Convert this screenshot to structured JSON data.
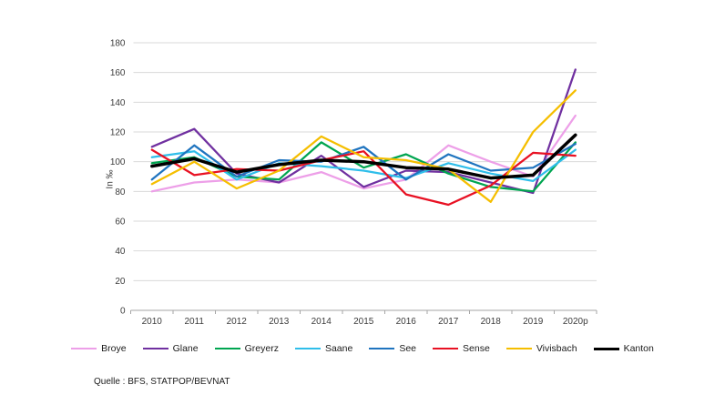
{
  "y_axis_title": "In ‰",
  "source": "Quelle : BFS, STATPOP/BEVNAT",
  "axis_color": "#a6a6a6",
  "grid_color": "#d9d9d9",
  "chart_data": {
    "type": "line",
    "title": "",
    "xlabel": "",
    "ylabel": "In ‰",
    "ylim": [
      0,
      180
    ],
    "y_tick_step": 20,
    "grid": true,
    "legend_position": "bottom",
    "categories": [
      "2010",
      "2011",
      "2012",
      "2013",
      "2014",
      "2015",
      "2016",
      "2017",
      "2018",
      "2019",
      "2020p"
    ],
    "series": [
      {
        "name": "Broye",
        "color": "#ED9FE8",
        "width": 2.25,
        "values": [
          80,
          86,
          88,
          86,
          93,
          82,
          88,
          111,
          100,
          90,
          131
        ]
      },
      {
        "name": "Glane",
        "color": "#7030A0",
        "width": 2.25,
        "values": [
          110,
          122,
          92,
          86,
          104,
          83,
          94,
          93,
          86,
          79,
          162
        ]
      },
      {
        "name": "Greyerz",
        "color": "#00A550",
        "width": 2.25,
        "values": [
          99,
          103,
          90,
          88,
          113,
          96,
          105,
          92,
          83,
          80,
          113
        ]
      },
      {
        "name": "Saane",
        "color": "#2FBEEA",
        "width": 2.25,
        "values": [
          103,
          107,
          88,
          99,
          97,
          94,
          89,
          99,
          92,
          87,
          108
        ]
      },
      {
        "name": "See",
        "color": "#1F74BF",
        "width": 2.25,
        "values": [
          88,
          111,
          90,
          101,
          100,
          110,
          88,
          105,
          94,
          96,
          112
        ]
      },
      {
        "name": "Sense",
        "color": "#E81123",
        "width": 2.25,
        "values": [
          108,
          91,
          95,
          94,
          101,
          107,
          78,
          71,
          84,
          106,
          104
        ]
      },
      {
        "name": "Vivisbach",
        "color": "#F5BE00",
        "width": 2.25,
        "values": [
          85,
          100,
          82,
          94,
          117,
          103,
          101,
          95,
          73,
          120,
          148
        ]
      },
      {
        "name": "Kanton",
        "color": "#000000",
        "width": 3.5,
        "values": [
          97,
          102,
          93,
          98,
          101,
          100,
          96,
          95,
          89,
          91,
          118
        ]
      }
    ]
  }
}
